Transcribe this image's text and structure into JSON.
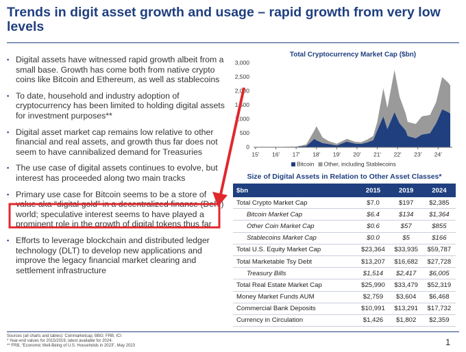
{
  "title": "Trends in digit asset growth and usage – rapid growth from very low levels",
  "bullets": [
    "Digital assets have witnessed rapid growth albeit from a small base. Growth has come both from native crypto coins like Bitcoin and Ethereum, as well as stablecoins",
    "To date, household and industry adoption of cryptocurrency has been limited to holding digital assets for investment purposes**",
    "Digital asset market cap remains low relative to other financial and real assets, and growth thus far does not seem to have cannibalized demand for Treasuries",
    "The use case of digital assets continues to evolve, but interest has proceeded along two main tracks",
    "Primary use case for Bitcoin seems to be a store of value aka “digital gold” in a decentralized finance (DeFi) world; speculative interest seems to have played a prominent role in the growth of digital tokens thus far",
    "Efforts to leverage blockchain and distributed ledger technology (DLT) to develop new applications and improve the legacy financial market clearing and settlement infrastructure"
  ],
  "chart_data": {
    "type": "stacked_area",
    "title": "Total Cryptocurrency Market Cap ($bn)",
    "x": [
      2015,
      2016,
      2017,
      2017.5,
      2017.9,
      2018.0,
      2018.3,
      2018.6,
      2019.0,
      2019.5,
      2019.9,
      2020.2,
      2020.5,
      2020.8,
      2021.0,
      2021.3,
      2021.5,
      2021.85,
      2022.1,
      2022.4,
      2022.5,
      2022.9,
      2023.2,
      2023.6,
      2023.9,
      2024.2,
      2024.5,
      2024.6
    ],
    "series": [
      {
        "name": "Bitcoin",
        "color": "#1f3f7f",
        "values": [
          6,
          7,
          16,
          45,
          300,
          250,
          150,
          115,
          65,
          200,
          130,
          120,
          170,
          250,
          600,
          1100,
          650,
          1250,
          850,
          600,
          400,
          320,
          450,
          500,
          850,
          1350,
          1250,
          1200
        ]
      },
      {
        "name": "Other, including Stablecoins",
        "color": "#9a9a9a",
        "values": [
          1,
          2,
          4,
          55,
          300,
          500,
          200,
          105,
          60,
          100,
          65,
          60,
          100,
          150,
          300,
          1000,
          750,
          1500,
          950,
          600,
          500,
          510,
          650,
          650,
          750,
          1150,
          1050,
          1000
        ]
      }
    ],
    "xlim": [
      2014.9,
      2024.7
    ],
    "xticks": [
      {
        "value": 2015,
        "label": "15'"
      },
      {
        "value": 2016,
        "label": "16'"
      },
      {
        "value": 2017,
        "label": "17'"
      },
      {
        "value": 2018,
        "label": "18'"
      },
      {
        "value": 2019,
        "label": "19'"
      },
      {
        "value": 2020,
        "label": "20'"
      },
      {
        "value": 2021,
        "label": "21'"
      },
      {
        "value": 2022,
        "label": "22'"
      },
      {
        "value": 2023,
        "label": "23'"
      },
      {
        "value": 2024,
        "label": "24'"
      }
    ],
    "ylim": [
      0,
      3000
    ],
    "yticks": [
      0,
      500,
      {
        "value": 1000,
        "label": "1,000"
      },
      {
        "value": 1500,
        "label": "1,500"
      },
      {
        "value": 2000,
        "label": "2,000"
      },
      {
        "value": 2500,
        "label": "2,500"
      },
      {
        "value": 3000,
        "label": "3,000"
      }
    ]
  },
  "table": {
    "title": "Size of Digital Assets in Relation to Other Asset Classes*",
    "header": [
      "$bn",
      "2015",
      "2019",
      "2024"
    ],
    "rows": [
      [
        "Total Crypto Market Cap",
        "$7.0",
        "$197",
        "$2,385"
      ],
      [
        "Bitcoin Market Cap",
        "$6.4",
        "$134",
        "$1,364"
      ],
      [
        "Other Coin Market Cap",
        "$0.6",
        "$57",
        "$855"
      ],
      [
        "Stablecoins Market Cap",
        "$0.0",
        "$5",
        "$166"
      ],
      [
        "Total U.S. Equity Market Cap",
        "$23,364",
        "$33,935",
        "$59,787"
      ],
      [
        "Total Marketable Tsy Debt",
        "$13,207",
        "$16,682",
        "$27,728"
      ],
      [
        "Treasury Bills",
        "$1,514",
        "$2,417",
        "$6,005"
      ],
      [
        "Total Real Estate Market Cap",
        "$25,990",
        "$33,479",
        "$52,319"
      ],
      [
        "Money Market Funds AUM",
        "$2,759",
        "$3,604",
        "$6,468"
      ],
      [
        "Commercial Bank Deposits",
        "$10,991",
        "$13,291",
        "$17,732"
      ],
      [
        "Currency in Circulation",
        "$1,426",
        "$1,802",
        "$2,359"
      ]
    ]
  },
  "footnotes": [
    "Sources (all charts and tables): Coinmarketcap; BBG; FRB; ICI",
    "* Year-end values for 2015/2019, latest available for 2024;",
    "** FRB, “Economic Well-Being of U.S. Households in 2023”, May 2023"
  ],
  "page_number": "1"
}
